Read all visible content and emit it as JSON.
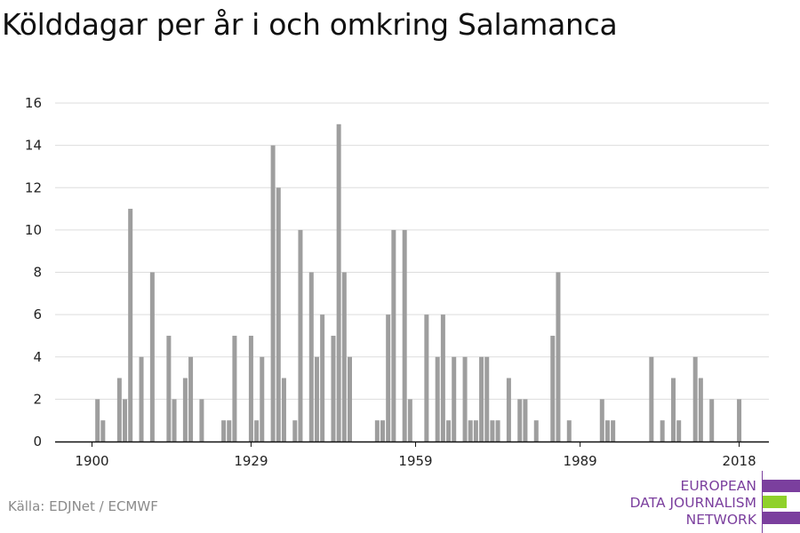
{
  "title": "Kölddagar per år i och omkring Salamanca",
  "source": "Källa: EDJNet / ECMWF",
  "logo": {
    "lines": [
      "EUROPEAN",
      "DATA JOURNALISM",
      "NETWORK"
    ],
    "colors": {
      "purple": "#7b3f9e",
      "green": "#8fd12a"
    }
  },
  "colors": {
    "bar": "#9e9e9e",
    "grid": "#dddddd",
    "axis": "#111111"
  },
  "chart_data": {
    "type": "bar",
    "title": "Kölddagar per år i och omkring Salamanca",
    "xlabel": "",
    "ylabel": "",
    "ylim": [
      0,
      16
    ],
    "yticks": [
      0,
      2,
      4,
      6,
      8,
      10,
      12,
      14,
      16
    ],
    "xticks": [
      1900,
      1929,
      1959,
      1989,
      2018
    ],
    "grid": true,
    "years": [
      1900,
      1901,
      1902,
      1903,
      1904,
      1905,
      1906,
      1907,
      1908,
      1909,
      1910,
      1911,
      1912,
      1913,
      1914,
      1915,
      1916,
      1917,
      1918,
      1919,
      1920,
      1921,
      1922,
      1923,
      1924,
      1925,
      1926,
      1927,
      1928,
      1929,
      1930,
      1931,
      1932,
      1933,
      1934,
      1935,
      1936,
      1937,
      1938,
      1939,
      1940,
      1941,
      1942,
      1943,
      1944,
      1945,
      1946,
      1947,
      1948,
      1949,
      1950,
      1951,
      1952,
      1953,
      1954,
      1955,
      1956,
      1957,
      1958,
      1959,
      1960,
      1961,
      1962,
      1963,
      1964,
      1965,
      1966,
      1967,
      1968,
      1969,
      1970,
      1971,
      1972,
      1973,
      1974,
      1975,
      1976,
      1977,
      1978,
      1979,
      1980,
      1981,
      1982,
      1983,
      1984,
      1985,
      1986,
      1987,
      1988,
      1989,
      1990,
      1991,
      1992,
      1993,
      1994,
      1995,
      1996,
      1997,
      1998,
      1999,
      2000,
      2001,
      2002,
      2003,
      2004,
      2005,
      2006,
      2007,
      2008,
      2009,
      2010,
      2011,
      2012,
      2013,
      2014,
      2015,
      2016,
      2017,
      2018,
      2019
    ],
    "values": [
      0,
      2,
      1,
      0,
      0,
      3,
      2,
      11,
      0,
      4,
      0,
      8,
      0,
      0,
      5,
      2,
      0,
      3,
      4,
      0,
      2,
      0,
      0,
      0,
      1,
      1,
      5,
      0,
      0,
      5,
      1,
      4,
      0,
      14,
      12,
      3,
      0,
      1,
      10,
      0,
      8,
      4,
      6,
      0,
      5,
      15,
      8,
      4,
      0,
      0,
      0,
      0,
      1,
      1,
      6,
      10,
      0,
      10,
      2,
      0,
      0,
      6,
      0,
      4,
      6,
      1,
      4,
      0,
      4,
      1,
      1,
      4,
      4,
      1,
      1,
      0,
      3,
      0,
      2,
      2,
      0,
      1,
      0,
      0,
      5,
      8,
      0,
      1,
      0,
      0,
      0,
      0,
      0,
      2,
      1,
      1,
      0,
      0,
      0,
      0,
      0,
      0,
      4,
      0,
      1,
      0,
      3,
      1,
      0,
      0,
      4,
      3,
      0,
      2,
      0,
      0,
      0,
      0,
      2,
      0
    ]
  }
}
